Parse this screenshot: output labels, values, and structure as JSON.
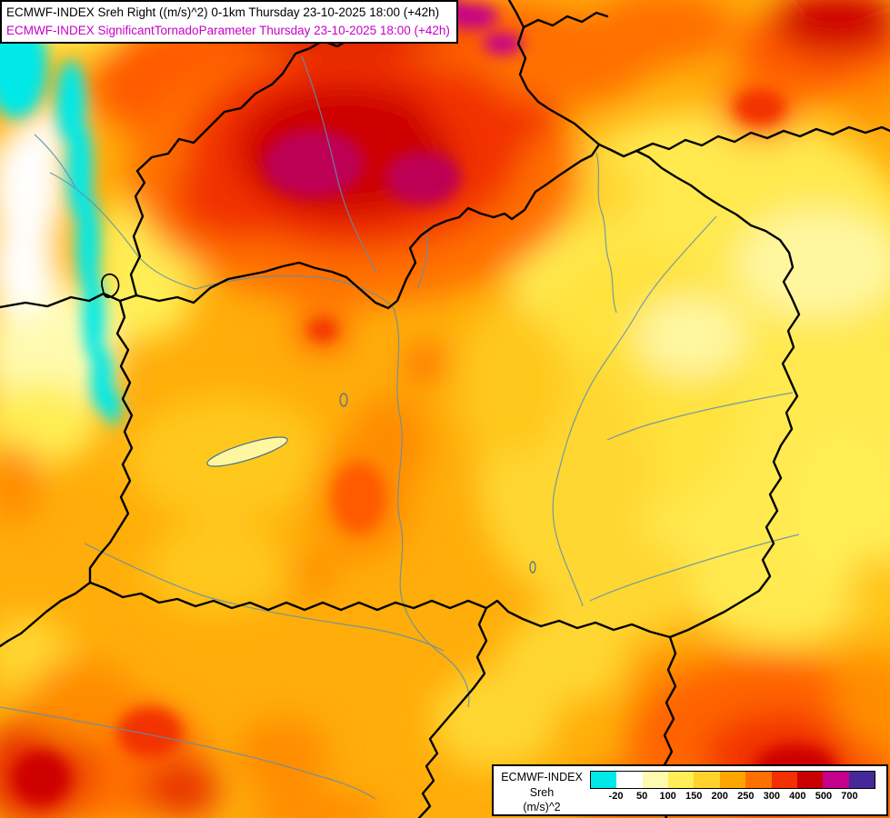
{
  "header": {
    "line1": "ECMWF-INDEX Sreh Right ((m/s)^2) 0-1km Thursday 23-10-2025 18:00 (+42h)",
    "line2": "ECMWF-INDEX SignificantTornadoParameter Thursday 23-10-2025 18:00 (+42h)",
    "line2_color": "#C800C8"
  },
  "legend": {
    "model": "ECMWF-INDEX",
    "parameter": "Sreh",
    "units": "(m/s)^2",
    "ticks": [
      "-20",
      "50",
      "100",
      "150",
      "200",
      "250",
      "300",
      "400",
      "500",
      "700"
    ],
    "colors": [
      "#00E8E8",
      "#FFFFFF",
      "#FFFAAF",
      "#FFEE55",
      "#FFD22D",
      "#FFA500",
      "#FF7000",
      "#F23000",
      "#C80000",
      "#C4008C",
      "#46289B"
    ]
  }
}
